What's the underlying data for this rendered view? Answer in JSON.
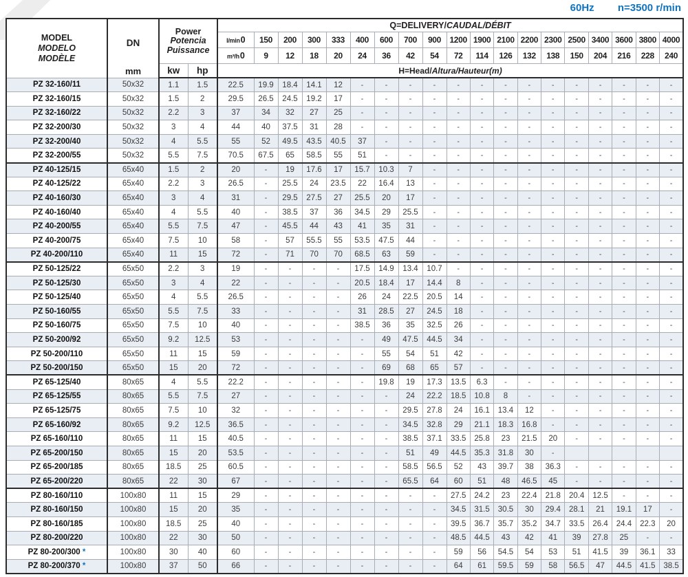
{
  "page": {
    "frequency": "60Hz",
    "speed": "n=3500 r/min"
  },
  "header": {
    "model_en": "MODEL",
    "model_es": "MODELO",
    "model_fr": "MODÈLE",
    "dn": "DN",
    "dn_unit": "mm",
    "power_en": "Power",
    "power_es": "Potencia",
    "power_fr": "Puissance",
    "kw": "kw",
    "hp": "hp",
    "q_title_en": "Q=DELIVERY/",
    "q_title_intl": "CAUDAL/DÉBIT",
    "lmin_unit": "l/min",
    "m3h_unit": "m³/h",
    "q_lmin": [
      "0",
      "150",
      "200",
      "300",
      "333",
      "400",
      "600",
      "700",
      "900",
      "1200",
      "1900",
      "2100",
      "2200",
      "2300",
      "2500",
      "3400",
      "3600",
      "3800",
      "4000"
    ],
    "q_m3h": [
      "0",
      "9",
      "12",
      "18",
      "20",
      "24",
      "36",
      "42",
      "54",
      "72",
      "114",
      "126",
      "132",
      "138",
      "150",
      "204",
      "216",
      "228",
      "240"
    ],
    "head_title_en": "H=Head/",
    "head_title_intl": "Altura/Hauteur(m)"
  },
  "rows": [
    {
      "model": "PZ 32-160/11",
      "dn": "50x32",
      "kw": "1.1",
      "hp": "1.5",
      "values": [
        "22.5",
        "19.9",
        "18.4",
        "14.1",
        "12",
        "-",
        "-",
        "-",
        "-",
        "-",
        "-",
        "-",
        "-",
        "-",
        "-",
        "-",
        "-",
        "-",
        "-"
      ]
    },
    {
      "model": "PZ 32-160/15",
      "dn": "50x32",
      "kw": "1.5",
      "hp": "2",
      "values": [
        "29.5",
        "26.5",
        "24.5",
        "19.2",
        "17",
        "-",
        "-",
        "-",
        "-",
        "-",
        "-",
        "-",
        "-",
        "-",
        "-",
        "-",
        "-",
        "-",
        "-"
      ]
    },
    {
      "model": "PZ 32-160/22",
      "dn": "50x32",
      "kw": "2.2",
      "hp": "3",
      "values": [
        "37",
        "34",
        "32",
        "27",
        "25",
        "-",
        "-",
        "-",
        "-",
        "-",
        "-",
        "-",
        "-",
        "-",
        "-",
        "-",
        "-",
        "-",
        "-"
      ]
    },
    {
      "model": "PZ 32-200/30",
      "dn": "50x32",
      "kw": "3",
      "hp": "4",
      "values": [
        "44",
        "40",
        "37.5",
        "31",
        "28",
        "-",
        "-",
        "-",
        "-",
        "-",
        "-",
        "-",
        "-",
        "-",
        "-",
        "-",
        "-",
        "-",
        "-"
      ]
    },
    {
      "model": "PZ 32-200/40",
      "dn": "50x32",
      "kw": "4",
      "hp": "5.5",
      "values": [
        "55",
        "52",
        "49.5",
        "43.5",
        "40.5",
        "37",
        "-",
        "-",
        "-",
        "-",
        "-",
        "-",
        "-",
        "-",
        "-",
        "-",
        "-",
        "-",
        "-"
      ]
    },
    {
      "model": "PZ 32-200/55",
      "dn": "50x32",
      "kw": "5.5",
      "hp": "7.5",
      "values": [
        "70.5",
        "67.5",
        "65",
        "58.5",
        "55",
        "51",
        "-",
        "-",
        "-",
        "-",
        "-",
        "-",
        "-",
        "-",
        "-",
        "-",
        "-",
        "-",
        "-"
      ]
    },
    {
      "model": "PZ 40-125/15",
      "dn": "65x40",
      "kw": "1.5",
      "hp": "2",
      "sep": true,
      "values": [
        "20",
        "-",
        "19",
        "17.6",
        "17",
        "15.7",
        "10.3",
        "7",
        "-",
        "-",
        "-",
        "-",
        "-",
        "-",
        "-",
        "-",
        "-",
        "-",
        "-"
      ]
    },
    {
      "model": "PZ 40-125/22",
      "dn": "65x40",
      "kw": "2.2",
      "hp": "3",
      "values": [
        "26.5",
        "-",
        "25.5",
        "24",
        "23.5",
        "22",
        "16.4",
        "13",
        "-",
        "-",
        "-",
        "-",
        "-",
        "-",
        "-",
        "-",
        "-",
        "-",
        "-"
      ]
    },
    {
      "model": "PZ 40-160/30",
      "dn": "65x40",
      "kw": "3",
      "hp": "4",
      "values": [
        "31",
        "-",
        "29.5",
        "27.5",
        "27",
        "25.5",
        "20",
        "17",
        "-",
        "-",
        "-",
        "-",
        "-",
        "-",
        "-",
        "-",
        "-",
        "-",
        "-"
      ]
    },
    {
      "model": "PZ 40-160/40",
      "dn": "65x40",
      "kw": "4",
      "hp": "5.5",
      "values": [
        "40",
        "-",
        "38.5",
        "37",
        "36",
        "34.5",
        "29",
        "25.5",
        "-",
        "-",
        "-",
        "-",
        "-",
        "-",
        "-",
        "-",
        "-",
        "-",
        "-"
      ]
    },
    {
      "model": "PZ 40-200/55",
      "dn": "65x40",
      "kw": "5.5",
      "hp": "7.5",
      "values": [
        "47",
        "-",
        "45.5",
        "44",
        "43",
        "41",
        "35",
        "31",
        "-",
        "-",
        "-",
        "-",
        "-",
        "-",
        "-",
        "-",
        "-",
        "-",
        "-"
      ]
    },
    {
      "model": "PZ 40-200/75",
      "dn": "65x40",
      "kw": "7.5",
      "hp": "10",
      "values": [
        "58",
        "-",
        "57",
        "55.5",
        "55",
        "53.5",
        "47.5",
        "44",
        "-",
        "-",
        "-",
        "-",
        "-",
        "-",
        "-",
        "-",
        "-",
        "-",
        "-"
      ]
    },
    {
      "model": "PZ 40-200/110",
      "dn": "65x40",
      "kw": "11",
      "hp": "15",
      "values": [
        "72",
        "-",
        "71",
        "70",
        "70",
        "68.5",
        "63",
        "59",
        "-",
        "-",
        "-",
        "-",
        "-",
        "-",
        "-",
        "-",
        "-",
        "-",
        "-"
      ]
    },
    {
      "model": "PZ 50-125/22",
      "dn": "65x50",
      "kw": "2.2",
      "hp": "3",
      "sep": true,
      "values": [
        "19",
        "-",
        "-",
        "-",
        "-",
        "17.5",
        "14.9",
        "13.4",
        "10.7",
        "-",
        "-",
        "-",
        "-",
        "-",
        "-",
        "-",
        "-",
        "-",
        "-"
      ]
    },
    {
      "model": "PZ 50-125/30",
      "dn": "65x50",
      "kw": "3",
      "hp": "4",
      "values": [
        "22",
        "-",
        "-",
        "-",
        "-",
        "20.5",
        "18.4",
        "17",
        "14.4",
        "8",
        "-",
        "-",
        "-",
        "-",
        "-",
        "-",
        "-",
        "-",
        "-"
      ]
    },
    {
      "model": "PZ 50-125/40",
      "dn": "65x50",
      "kw": "4",
      "hp": "5.5",
      "values": [
        "26.5",
        "-",
        "-",
        "-",
        "-",
        "26",
        "24",
        "22.5",
        "20.5",
        "14",
        "-",
        "-",
        "-",
        "-",
        "-",
        "-",
        "-",
        "-",
        "-"
      ]
    },
    {
      "model": "PZ 50-160/55",
      "dn": "65x50",
      "kw": "5.5",
      "hp": "7.5",
      "values": [
        "33",
        "-",
        "-",
        "-",
        "-",
        "31",
        "28.5",
        "27",
        "24.5",
        "18",
        "-",
        "-",
        "-",
        "-",
        "-",
        "-",
        "-",
        "-",
        "-"
      ]
    },
    {
      "model": "PZ 50-160/75",
      "dn": "65x50",
      "kw": "7.5",
      "hp": "10",
      "values": [
        "40",
        "-",
        "-",
        "-",
        "-",
        "38.5",
        "36",
        "35",
        "32.5",
        "26",
        "-",
        "-",
        "-",
        "-",
        "-",
        "-",
        "-",
        "-",
        "-"
      ]
    },
    {
      "model": "PZ 50-200/92",
      "dn": "65x50",
      "kw": "9.2",
      "hp": "12.5",
      "values": [
        "53",
        "-",
        "-",
        "-",
        "-",
        "-",
        "49",
        "47.5",
        "44.5",
        "34",
        "-",
        "-",
        "-",
        "-",
        "-",
        "-",
        "-",
        "-",
        "-"
      ]
    },
    {
      "model": "PZ 50-200/110",
      "dn": "65x50",
      "kw": "11",
      "hp": "15",
      "values": [
        "59",
        "-",
        "-",
        "-",
        "-",
        "-",
        "55",
        "54",
        "51",
        "42",
        "-",
        "-",
        "-",
        "-",
        "-",
        "-",
        "-",
        "-",
        "-"
      ]
    },
    {
      "model": "PZ 50-200/150",
      "dn": "65x50",
      "kw": "15",
      "hp": "20",
      "values": [
        "72",
        "-",
        "-",
        "-",
        "-",
        "-",
        "69",
        "68",
        "65",
        "57",
        "-",
        "-",
        "-",
        "-",
        "-",
        "-",
        "-",
        "-",
        "-"
      ]
    },
    {
      "model": "PZ 65-125/40",
      "dn": "80x65",
      "kw": "4",
      "hp": "5.5",
      "sep": true,
      "values": [
        "22.2",
        "-",
        "-",
        "-",
        "-",
        "-",
        "19.8",
        "19",
        "17.3",
        "13.5",
        "6.3",
        "-",
        "-",
        "-",
        "-",
        "-",
        "-",
        "-",
        "-"
      ]
    },
    {
      "model": "PZ 65-125/55",
      "dn": "80x65",
      "kw": "5.5",
      "hp": "7.5",
      "values": [
        "27",
        "-",
        "-",
        "-",
        "-",
        "-",
        "-",
        "24",
        "22.2",
        "18.5",
        "10.8",
        "8",
        "-",
        "-",
        "-",
        "-",
        "-",
        "-",
        "-"
      ]
    },
    {
      "model": "PZ 65-125/75",
      "dn": "80x65",
      "kw": "7.5",
      "hp": "10",
      "values": [
        "32",
        "-",
        "-",
        "-",
        "-",
        "-",
        "-",
        "29.5",
        "27.8",
        "24",
        "16.1",
        "13.4",
        "12",
        "-",
        "-",
        "-",
        "-",
        "-",
        "-"
      ]
    },
    {
      "model": "PZ 65-160/92",
      "dn": "80x65",
      "kw": "9.2",
      "hp": "12.5",
      "values": [
        "36.5",
        "-",
        "-",
        "-",
        "-",
        "-",
        "-",
        "34.5",
        "32.8",
        "29",
        "21.1",
        "18.3",
        "16.8",
        "-",
        "-",
        "-",
        "-",
        "-",
        "-"
      ]
    },
    {
      "model": "PZ 65-160/110",
      "dn": "80x65",
      "kw": "11",
      "hp": "15",
      "values": [
        "40.5",
        "-",
        "-",
        "-",
        "-",
        "-",
        "-",
        "38.5",
        "37.1",
        "33.5",
        "25.8",
        "23",
        "21.5",
        "20",
        "-",
        "-",
        "-",
        "-",
        "-"
      ]
    },
    {
      "model": "PZ 65-200/150",
      "dn": "80x65",
      "kw": "15",
      "hp": "20",
      "values": [
        "53.5",
        "-",
        "-",
        "-",
        "-",
        "-",
        "-",
        "51",
        "49",
        "44.5",
        "35.3",
        "31.8",
        "30",
        "-",
        "",
        "",
        "",
        "",
        ""
      ]
    },
    {
      "model": "PZ 65-200/185",
      "dn": "80x65",
      "kw": "18.5",
      "hp": "25",
      "values": [
        "60.5",
        "-",
        "-",
        "-",
        "-",
        "-",
        "-",
        "58.5",
        "56.5",
        "52",
        "43",
        "39.7",
        "38",
        "36.3",
        "-",
        "-",
        "-",
        "-",
        "-"
      ]
    },
    {
      "model": "PZ 65-200/220",
      "dn": "80x65",
      "kw": "22",
      "hp": "30",
      "values": [
        "67",
        "-",
        "-",
        "-",
        "-",
        "-",
        "-",
        "65.5",
        "64",
        "60",
        "51",
        "48",
        "46.5",
        "45",
        "-",
        "-",
        "-",
        "-",
        "-"
      ]
    },
    {
      "model": "PZ 80-160/110",
      "dn": "100x80",
      "kw": "11",
      "hp": "15",
      "sep": true,
      "values": [
        "29",
        "-",
        "-",
        "-",
        "-",
        "-",
        "-",
        "-",
        "-",
        "27.5",
        "24.2",
        "23",
        "22.4",
        "21.8",
        "20.4",
        "12.5",
        "-",
        "-",
        "-"
      ]
    },
    {
      "model": "PZ 80-160/150",
      "dn": "100x80",
      "kw": "15",
      "hp": "20",
      "values": [
        "35",
        "-",
        "-",
        "-",
        "-",
        "-",
        "-",
        "-",
        "-",
        "34.5",
        "31.5",
        "30.5",
        "30",
        "29.4",
        "28.1",
        "21",
        "19.1",
        "17",
        "-"
      ]
    },
    {
      "model": "PZ 80-160/185",
      "dn": "100x80",
      "kw": "18.5",
      "hp": "25",
      "values": [
        "40",
        "-",
        "-",
        "-",
        "-",
        "-",
        "-",
        "-",
        "-",
        "39.5",
        "36.7",
        "35.7",
        "35.2",
        "34.7",
        "33.5",
        "26.4",
        "24.4",
        "22.3",
        "20"
      ]
    },
    {
      "model": "PZ 80-200/220",
      "dn": "100x80",
      "kw": "22",
      "hp": "30",
      "values": [
        "50",
        "-",
        "-",
        "-",
        "-",
        "-",
        "-",
        "-",
        "-",
        "48.5",
        "44.5",
        "43",
        "42",
        "41",
        "39",
        "27.8",
        "25",
        "-",
        "-"
      ]
    },
    {
      "model": "PZ 80-200/300",
      "dn": "100x80",
      "kw": "30",
      "hp": "40",
      "star": true,
      "values": [
        "60",
        "-",
        "-",
        "-",
        "-",
        "-",
        "-",
        "-",
        "-",
        "59",
        "56",
        "54.5",
        "54",
        "53",
        "51",
        "41.5",
        "39",
        "36.1",
        "33"
      ]
    },
    {
      "model": "PZ 80-200/370",
      "dn": "100x80",
      "kw": "37",
      "hp": "50",
      "star": true,
      "values": [
        "66",
        "-",
        "-",
        "-",
        "-",
        "-",
        "-",
        "-",
        "-",
        "64",
        "61",
        "59.5",
        "59",
        "58",
        "56.5",
        "47",
        "44.5",
        "41.5",
        "38.5"
      ]
    }
  ]
}
